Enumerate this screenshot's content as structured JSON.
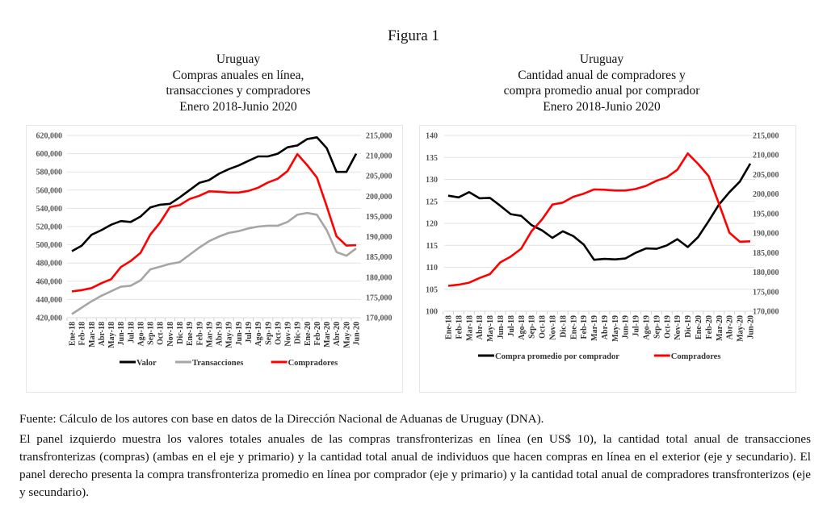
{
  "figure_title": "Figura 1",
  "left_title": [
    "Uruguay",
    "Compras anuales en línea,",
    "transacciones y compradores",
    "Enero 2018-Junio 2020"
  ],
  "right_title": [
    "Uruguay",
    "Cantidad anual de compradores y",
    "compra promedio anual por comprador",
    "Enero 2018-Junio 2020"
  ],
  "notes": {
    "source": "Fuente: Cálculo de los autores con base en datos de la Dirección Nacional de Aduanas de Uruguay (DNA).",
    "description": "El panel izquierdo muestra los valores totales anuales de las compras transfronterizas en línea (en US$ 10), la cantidad total anual de transacciones transfronterizas (compras) (ambas en el eje y primario) y la cantidad total anual de individuos que hacen compras en línea en el exterior (eje y secundario). El panel derecho presenta la compra transfronteriza promedio en línea por comprador (eje y primario) y la cantidad total anual de compradores transfronterizos (eje y secundario)."
  },
  "colors": {
    "black": "#000000",
    "gray": "#a6a6a6",
    "red": "#ff0000",
    "grid": "#e3e3e3",
    "axis_text": "#595959"
  },
  "chart_data": [
    {
      "type": "line",
      "title": "Compras anuales en línea, transacciones y compradores",
      "categories": [
        "Ene-18",
        "Feb-18",
        "Mar-18",
        "Abr-18",
        "May-18",
        "Jun-18",
        "Jul-18",
        "Ago-18",
        "Sep-18",
        "Oct-18",
        "Nov-18",
        "Dic-18",
        "Ene-19",
        "Feb-19",
        "Mar-19",
        "Abr-19",
        "May-19",
        "Jun-19",
        "Jul-19",
        "Ago-19",
        "Sep-19",
        "Oct-19",
        "Nov-19",
        "Dic-19",
        "Ene-20",
        "Feb-20",
        "Mar-20",
        "Abr-20",
        "May-20",
        "Jun-20"
      ],
      "y_primary": {
        "ylim": [
          420000,
          620000
        ],
        "ticks": [
          "420,000",
          "440,000",
          "460,000",
          "480,000",
          "500,000",
          "520,000",
          "540,000",
          "560,000",
          "580,000",
          "600,000",
          "620,000"
        ]
      },
      "y_secondary": {
        "ylim": [
          170000,
          215000
        ],
        "ticks": [
          "170,000",
          "175,000",
          "180,000",
          "185,000",
          "190,000",
          "195,000",
          "200,000",
          "205,000",
          "210,000",
          "215,000"
        ]
      },
      "grid": true,
      "legend": "bottom",
      "series": [
        {
          "name": "Valor",
          "axis": "primary",
          "color": "#000000",
          "values": [
            493000,
            499000,
            511000,
            516000,
            522000,
            526000,
            525000,
            531000,
            541000,
            544000,
            545000,
            552000,
            560000,
            568000,
            571000,
            578000,
            583000,
            587000,
            592000,
            597000,
            597000,
            600000,
            607000,
            609000,
            616000,
            618000,
            606000,
            580000,
            580000,
            600000
          ]
        },
        {
          "name": "Transacciones",
          "axis": "primary",
          "color": "#a6a6a6",
          "values": [
            424000,
            431000,
            438000,
            444000,
            449000,
            454000,
            455000,
            461000,
            473000,
            476000,
            479000,
            481000,
            489000,
            497000,
            504000,
            509000,
            513000,
            515000,
            518000,
            520000,
            521000,
            521000,
            525000,
            533000,
            535000,
            533000,
            516000,
            492000,
            488000,
            496000
          ]
        },
        {
          "name": "Compradores",
          "axis": "secondary",
          "color": "#ff0000",
          "values": [
            176500,
            176800,
            177300,
            178500,
            179500,
            182500,
            184000,
            186000,
            190500,
            193500,
            197300,
            197800,
            199300,
            200100,
            201200,
            201100,
            200900,
            200900,
            201300,
            202100,
            203400,
            204300,
            206200,
            210400,
            207700,
            204600,
            197500,
            190100,
            187800,
            187900
          ]
        }
      ]
    },
    {
      "type": "line",
      "title": "Cantidad anual de compradores y compra promedio anual por comprador",
      "categories": [
        "Ene-18",
        "Feb-18",
        "Mar-18",
        "Abr-18",
        "May-18",
        "Jun-18",
        "Jul-18",
        "Ago-18",
        "Sep-18",
        "Oct-18",
        "Nov-18",
        "Dic-18",
        "Ene-19",
        "Feb-19",
        "Mar-19",
        "Abr-19",
        "May-19",
        "Jun-19",
        "Jul-19",
        "Ago-19",
        "Sep-19",
        "Oct-19",
        "Nov-19",
        "Dic-19",
        "Ene-20",
        "Feb-20",
        "Mar-20",
        "Abr-20",
        "May-20",
        "Jun-20"
      ],
      "y_primary": {
        "ylim": [
          100,
          140
        ],
        "ticks": [
          "100",
          "105",
          "110",
          "115",
          "120",
          "125",
          "130",
          "135",
          "140"
        ]
      },
      "y_secondary": {
        "ylim": [
          170000,
          215000
        ],
        "ticks": [
          "170,000",
          "175,000",
          "180,000",
          "185,000",
          "190,000",
          "195,000",
          "200,000",
          "205,000",
          "210,000",
          "215,000"
        ]
      },
      "grid": true,
      "legend": "bottom",
      "series": [
        {
          "name": "Compra promedio por comprador",
          "axis": "primary",
          "color": "#000000",
          "values": [
            126.3,
            125.9,
            127.1,
            125.7,
            125.8,
            124.0,
            122.1,
            121.7,
            119.6,
            118.4,
            116.7,
            118.2,
            117.1,
            115.2,
            111.7,
            111.9,
            111.8,
            112.0,
            113.3,
            114.3,
            114.2,
            115.0,
            116.4,
            114.6,
            116.9,
            120.5,
            124.3,
            127.1,
            129.5,
            133.6
          ]
        },
        {
          "name": "Compradores",
          "axis": "secondary",
          "color": "#ff0000",
          "values": [
            176500,
            176800,
            177300,
            178500,
            179500,
            182500,
            184000,
            186000,
            190500,
            193500,
            197300,
            197800,
            199300,
            200100,
            201200,
            201100,
            200900,
            200900,
            201300,
            202100,
            203400,
            204300,
            206200,
            210400,
            207700,
            204600,
            197500,
            190100,
            187800,
            187900
          ]
        }
      ]
    }
  ]
}
